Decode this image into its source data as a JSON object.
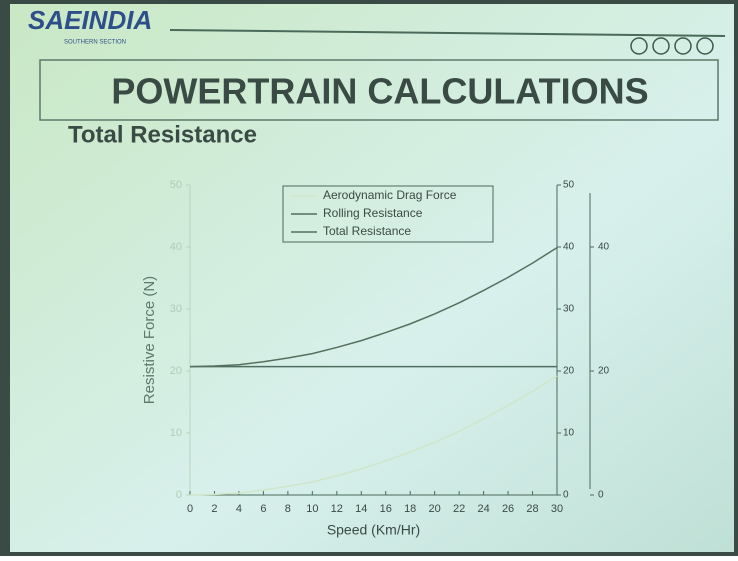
{
  "header": {
    "logo": "SAEINDIA",
    "section": "SOUTHERN SECTION",
    "title": "POWERTRAIN CALCULATIONS",
    "subtitle": "Total Resistance"
  },
  "chart_data": {
    "type": "line",
    "x_label": "Speed (Km/Hr)",
    "y_label": "Resistive Force (N)",
    "x": [
      0,
      2,
      4,
      6,
      8,
      10,
      12,
      14,
      16,
      18,
      20,
      22,
      24,
      26,
      28,
      30
    ],
    "series": [
      {
        "name": "Aerodynamic Drag Force",
        "color": "#cfe6c8",
        "values": [
          0,
          0.1,
          0.3,
          0.8,
          1.4,
          2.1,
          3.1,
          4.2,
          5.5,
          6.9,
          8.5,
          10.3,
          12.3,
          14.4,
          16.7,
          19.2
        ]
      },
      {
        "name": "Rolling Resistance",
        "color": "#4e6e60",
        "values": [
          20.7,
          20.7,
          20.7,
          20.7,
          20.7,
          20.7,
          20.7,
          20.7,
          20.7,
          20.7,
          20.7,
          20.7,
          20.7,
          20.7,
          20.7,
          20.7
        ],
        "axis": "y2"
      },
      {
        "name": "Total Resistance",
        "color": "#55705f",
        "values": [
          20.7,
          20.8,
          21.0,
          21.5,
          22.1,
          22.8,
          23.8,
          24.9,
          26.2,
          27.6,
          29.2,
          31.0,
          33.0,
          35.1,
          37.4,
          39.9
        ],
        "axis": "y3"
      }
    ],
    "xlim": [
      0,
      30
    ],
    "xticks": [
      0,
      2,
      4,
      6,
      8,
      10,
      12,
      14,
      16,
      18,
      20,
      22,
      24,
      26,
      28,
      30
    ],
    "ylim": [
      0,
      50
    ],
    "yticks": [
      0,
      10,
      20,
      30,
      40,
      50
    ],
    "y2lim": [
      0,
      50
    ],
    "y2ticks": [
      0,
      10,
      20,
      30,
      40,
      50
    ],
    "y3lim": [
      0,
      50
    ],
    "y3ticks": [
      0,
      20,
      40
    ],
    "legend": "top"
  }
}
